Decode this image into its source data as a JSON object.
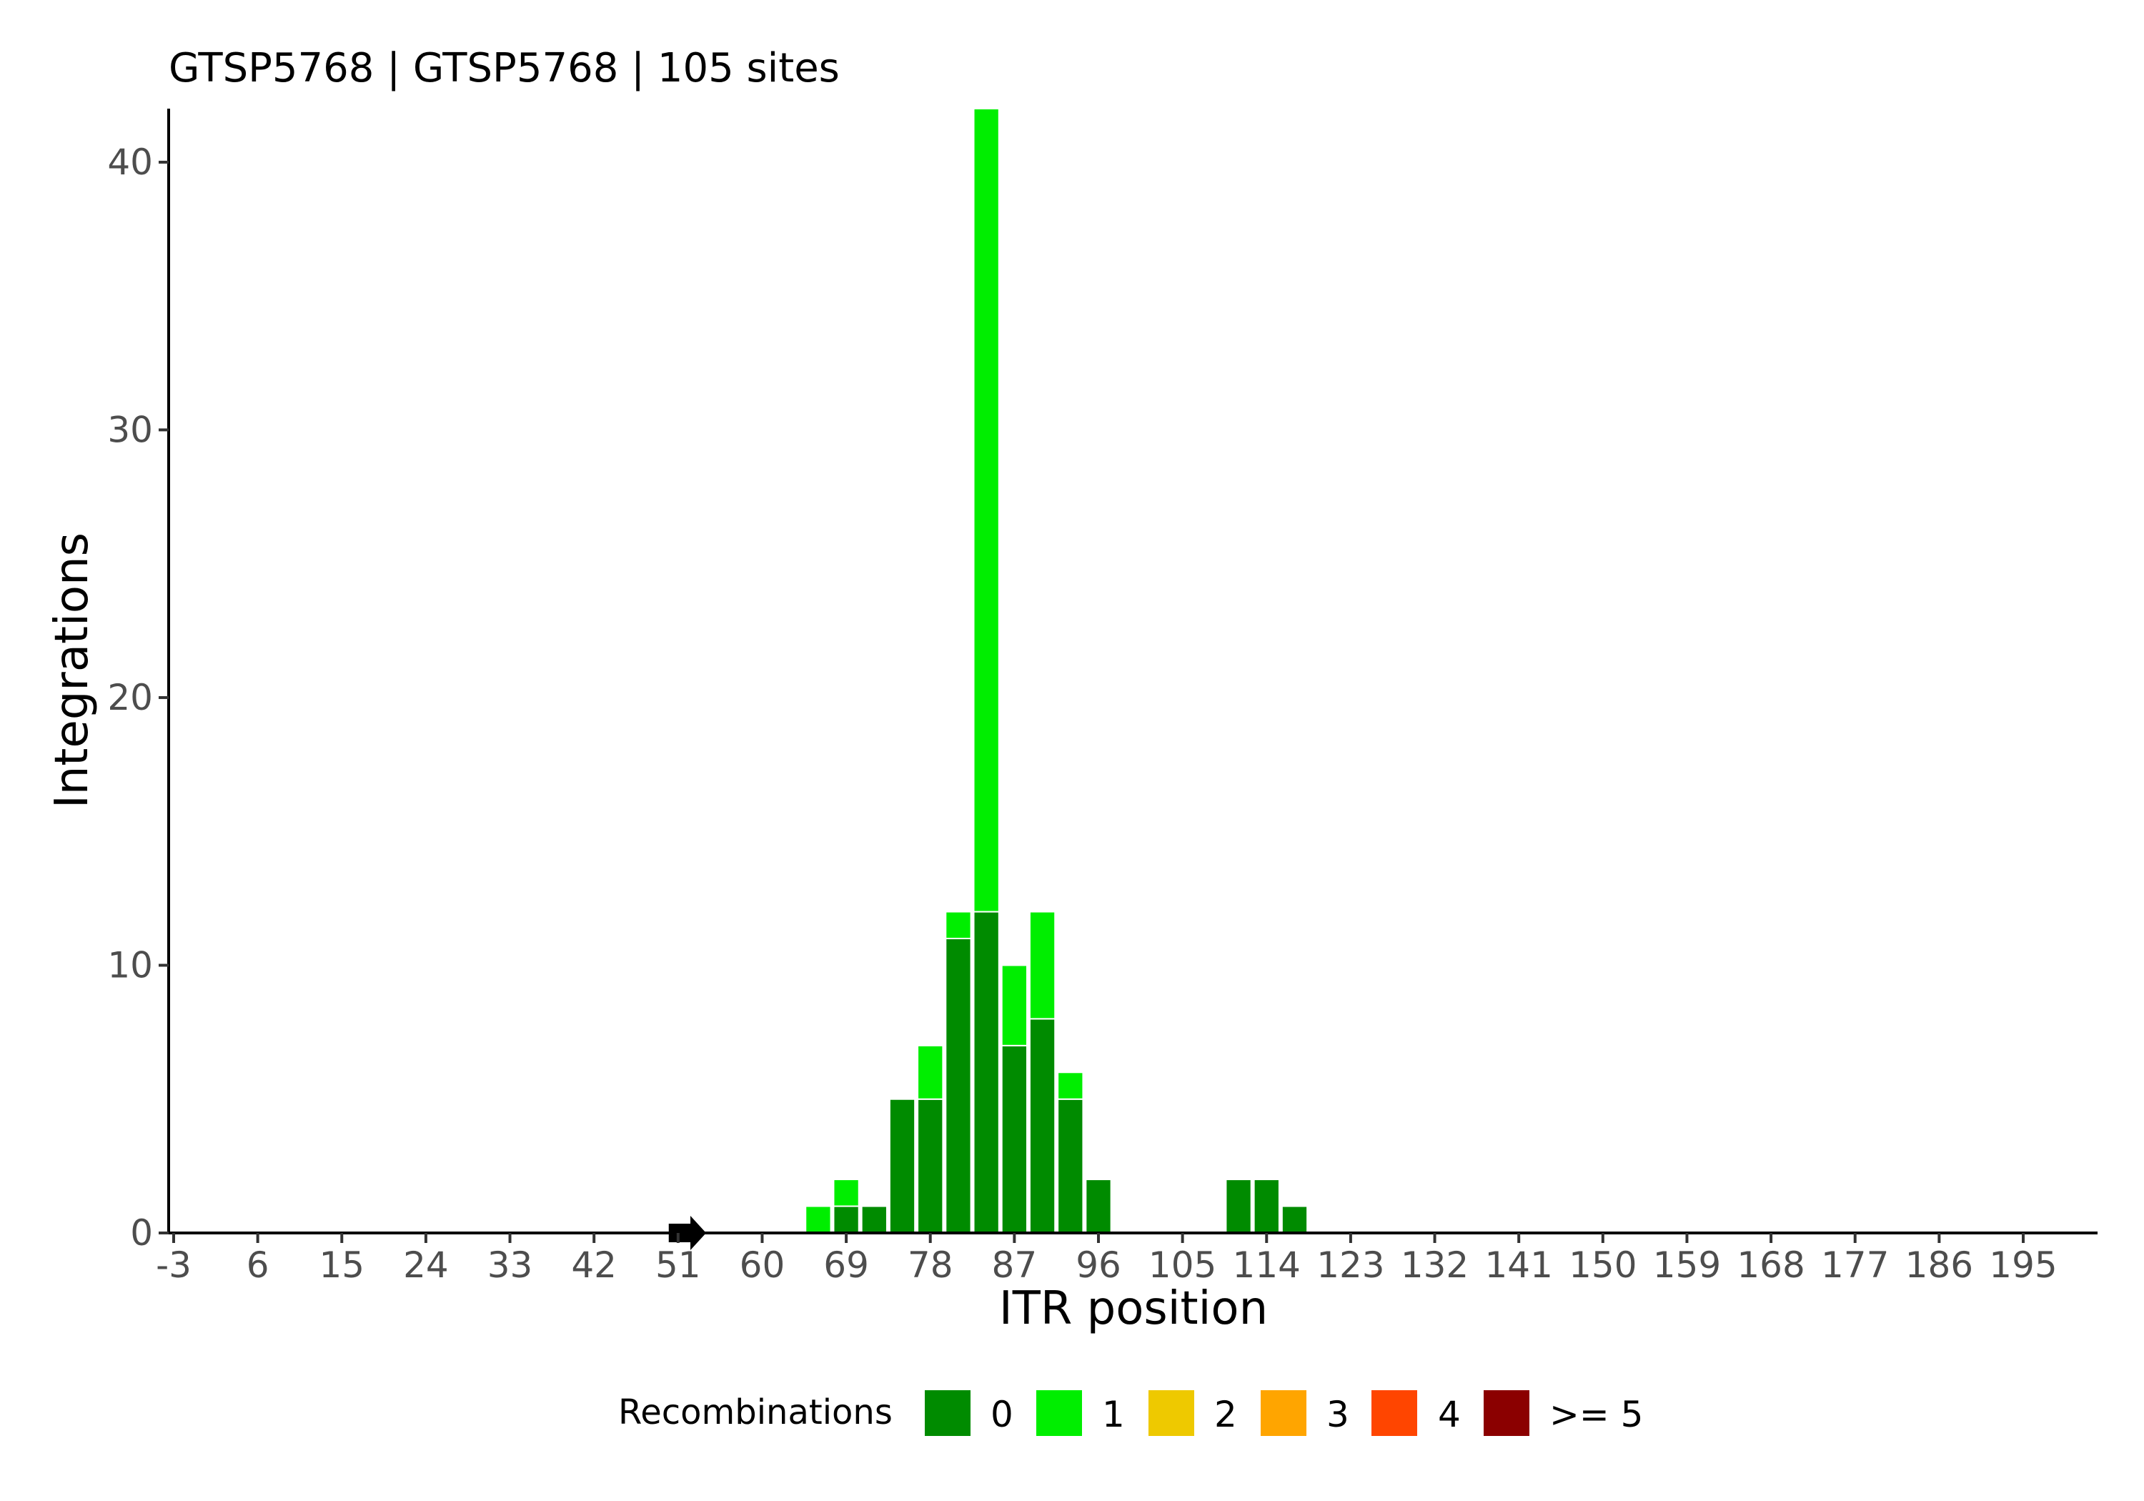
{
  "chart_data": {
    "type": "bar",
    "stacked": true,
    "title": "GTSP5768 | GTSP5768 | 105 sites",
    "xlabel": "ITR position",
    "ylabel": "Integrations",
    "x_ticks": [
      -3,
      6,
      15,
      24,
      33,
      42,
      51,
      60,
      69,
      78,
      87,
      96,
      105,
      114,
      123,
      132,
      141,
      150,
      159,
      168,
      177,
      186,
      195
    ],
    "y_ticks": [
      0,
      10,
      20,
      30,
      40
    ],
    "xlim": [
      -3.5,
      204
    ],
    "ylim": [
      0,
      42
    ],
    "bin_width": 3,
    "categories": [
      66,
      69,
      72,
      75,
      78,
      81,
      84,
      87,
      90,
      93,
      96,
      111,
      114,
      117
    ],
    "series": [
      {
        "name": "0",
        "color": "#008B00",
        "values": [
          0,
          1,
          1,
          5,
          5,
          11,
          12,
          7,
          8,
          5,
          2,
          2,
          2,
          1
        ]
      },
      {
        "name": "1",
        "color": "#00EE00",
        "values": [
          1,
          1,
          0,
          0,
          2,
          1,
          30,
          3,
          4,
          1,
          0,
          0,
          0,
          0
        ]
      },
      {
        "name": "2",
        "color": "#EEC900",
        "values": [
          0,
          0,
          0,
          0,
          0,
          0,
          0,
          0,
          0,
          0,
          0,
          0,
          0,
          0
        ]
      },
      {
        "name": "3",
        "color": "#FFA500",
        "values": [
          0,
          0,
          0,
          0,
          0,
          0,
          0,
          0,
          0,
          0,
          0,
          0,
          0,
          0
        ]
      },
      {
        "name": "4",
        "color": "#FF4500",
        "values": [
          0,
          0,
          0,
          0,
          0,
          0,
          0,
          0,
          0,
          0,
          0,
          0,
          0,
          0
        ]
      },
      {
        "name": ">= 5",
        "color": "#8B0000",
        "values": [
          0,
          0,
          0,
          0,
          0,
          0,
          0,
          0,
          0,
          0,
          0,
          0,
          0,
          0
        ]
      }
    ],
    "legend": {
      "title": "Recombinations",
      "position": "bottom",
      "entries": [
        "0",
        "1",
        "2",
        "3",
        "4",
        ">= 5"
      ]
    },
    "annotation": {
      "type": "arrow",
      "x_start": 50,
      "x_end": 54,
      "y": 0,
      "color": "#000000"
    },
    "grid": false
  }
}
